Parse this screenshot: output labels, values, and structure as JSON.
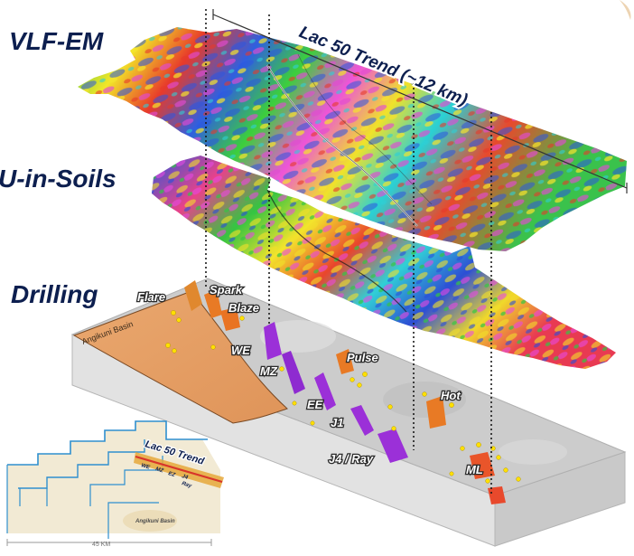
{
  "layers": {
    "vlf_label": "VLF-EM",
    "soils_label": "U-in-Soils",
    "drilling_label": "Drilling"
  },
  "trend": {
    "label": "Lac 50 Trend (~12 km)"
  },
  "basin_label": "Angikuni Basin",
  "deposits": [
    "Flare",
    "Spark",
    "Blaze",
    "WE",
    "MZ",
    "Pulse",
    "EE",
    "J1",
    "Hot",
    "J4 / Ray",
    "ML"
  ],
  "inset": {
    "title": "Lac 50 Trend",
    "deposit_labels": [
      "WE",
      "MZ",
      "EZ",
      "J4",
      "Ray"
    ],
    "basin_label": "Angikuni Basin",
    "scale_label": "45 KM"
  },
  "colors": {
    "label_text": "#0d1f4f",
    "basin_fill": "#e8a56c",
    "block_top": "#cfcfcf",
    "block_side": "#dedede",
    "deposit_purple": "#9b30d8",
    "deposit_orange": "#e87a25",
    "drill_hole": "#ffe000"
  }
}
